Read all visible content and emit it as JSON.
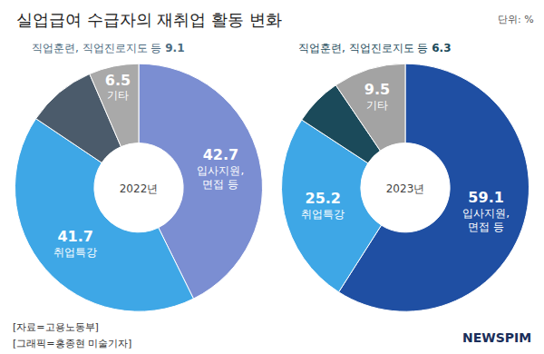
{
  "title": "실업급여 수급자의 재취업 활동 변화",
  "unit": "단위: %",
  "notes": [
    "[자료=고용노동부]",
    "[그래픽=홍종현 미술기자]"
  ],
  "logo": "NEWSPIM",
  "chart_data": [
    {
      "type": "pie",
      "title": "2022년",
      "categories": [
        "입사지원, 면접 등",
        "취업특강",
        "직업훈련, 직업진로지도 등",
        "기타"
      ],
      "values": [
        42.7,
        41.7,
        9.1,
        6.5
      ],
      "colors": [
        "#7b8ed2",
        "#3ea7e6",
        "#4b5b6b",
        "#a9a9a9"
      ],
      "data_labels": true
    },
    {
      "type": "pie",
      "title": "2023년",
      "categories": [
        "입사지원, 면접 등",
        "취업특강",
        "직업훈련, 직업진로지도 등",
        "기타"
      ],
      "values": [
        59.1,
        25.2,
        6.3,
        9.5
      ],
      "colors": [
        "#1f4fa3",
        "#3ea7e6",
        "#1b4a5a",
        "#a3a3a3"
      ],
      "data_labels": true
    }
  ]
}
